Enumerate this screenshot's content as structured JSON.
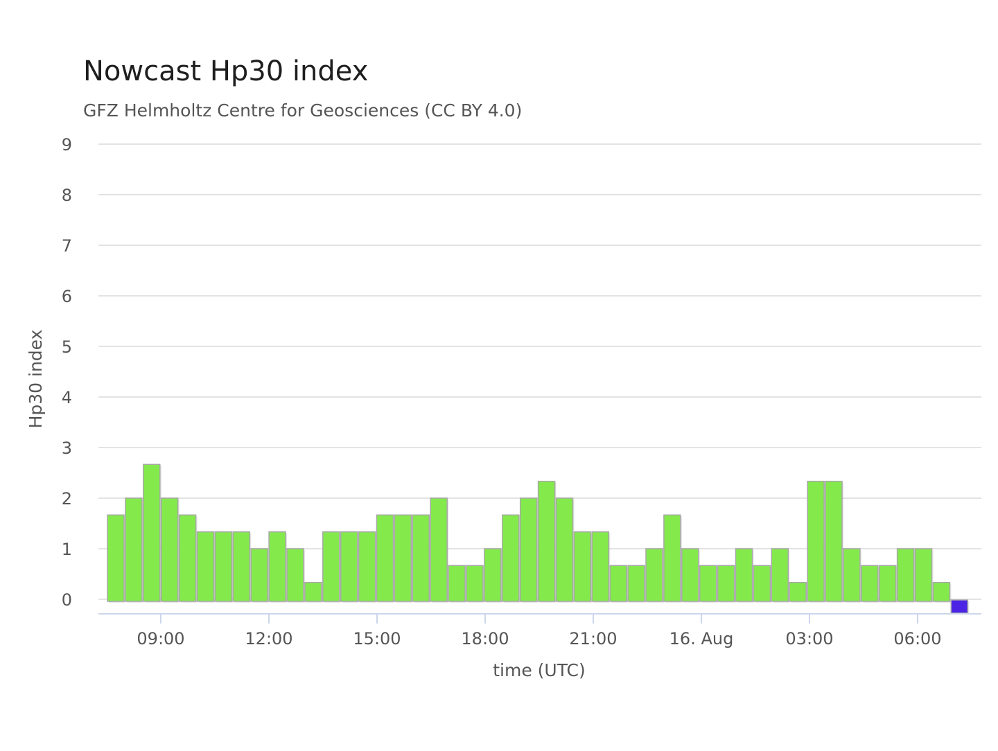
{
  "chart_data": {
    "type": "bar",
    "title": "Nowcast Hp30 index",
    "subtitle": "GFZ Helmholtz Centre for Geosciences (CC BY 4.0)",
    "xlabel": "time (UTC)",
    "ylabel": "Hp30 index",
    "ylim": [
      0,
      9
    ],
    "yticks": [
      0,
      1,
      2,
      3,
      4,
      5,
      6,
      7,
      8,
      9
    ],
    "grid": true,
    "x_tick_labels": [
      "09:00",
      "12:00",
      "15:00",
      "18:00",
      "21:00",
      "16. Aug",
      "03:00",
      "06:00"
    ],
    "values": [
      1.667,
      2,
      2.667,
      2,
      1.667,
      1.333,
      1.333,
      1.333,
      1,
      1.333,
      1,
      0.333,
      1.333,
      1.333,
      1.333,
      1.667,
      1.667,
      1.667,
      2,
      0.667,
      0.667,
      1,
      1.667,
      2,
      2.333,
      2,
      1.333,
      1.333,
      0.667,
      0.667,
      1,
      1.667,
      1,
      0.667,
      0.667,
      1,
      0.667,
      1,
      0.333,
      2.333,
      2.333,
      1,
      0.667,
      0.667,
      1,
      1,
      0.333,
      0
    ],
    "bar_colors": {
      "default": "#84ea4b",
      "last": "#4b24e6"
    }
  }
}
